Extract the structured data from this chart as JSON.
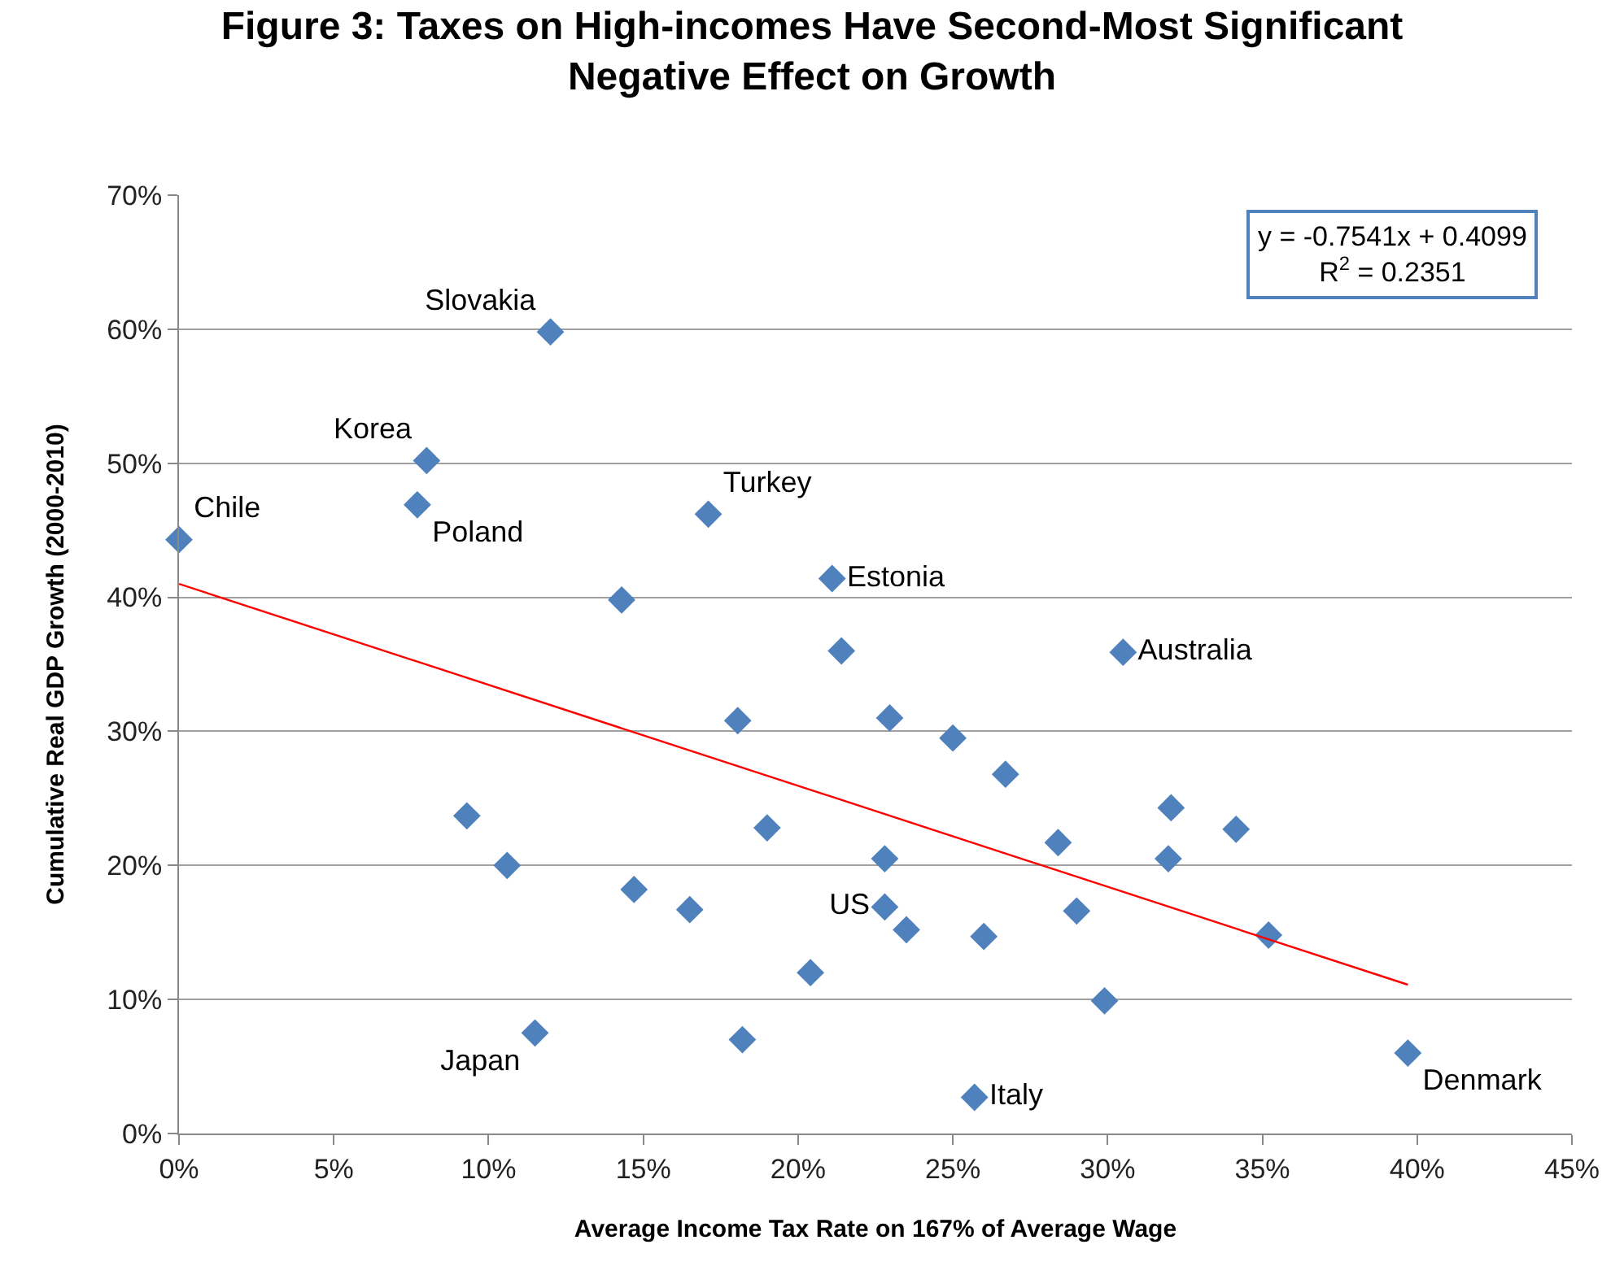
{
  "chart_data": {
    "type": "scatter",
    "title": "Figure 3: Taxes on High-incomes Have Second-Most Significant\nNegative Effect on Growth",
    "xlabel": "Average Income Tax Rate on 167% of Average Wage",
    "ylabel": "Cumulative Real GDP Growth (2000-2010)",
    "xlim": [
      0,
      45
    ],
    "xticks": [
      {
        "value": 0,
        "label": "0%"
      },
      {
        "value": 5,
        "label": "5%"
      },
      {
        "value": 10,
        "label": "10%"
      },
      {
        "value": 15,
        "label": "15%"
      },
      {
        "value": 20,
        "label": "20%"
      },
      {
        "value": 25,
        "label": "25%"
      },
      {
        "value": 30,
        "label": "30%"
      },
      {
        "value": 35,
        "label": "35%"
      },
      {
        "value": 40,
        "label": "40%"
      },
      {
        "value": 45,
        "label": "45%"
      }
    ],
    "ylim": [
      0,
      70
    ],
    "yticks": [
      {
        "value": 0,
        "label": "0%"
      },
      {
        "value": 10,
        "label": "10%"
      },
      {
        "value": 20,
        "label": "20%"
      },
      {
        "value": 30,
        "label": "30%"
      },
      {
        "value": 40,
        "label": "40%"
      },
      {
        "value": 50,
        "label": "50%"
      },
      {
        "value": 60,
        "label": "60%"
      },
      {
        "value": 70,
        "label": "70%"
      }
    ],
    "grid": "y",
    "marker": "diamond",
    "series": [
      {
        "type": "scatter",
        "color": "#4f81bd",
        "x": [
          0,
          12.0,
          8.0,
          7.7,
          17.1,
          21.1,
          30.5,
          22.8,
          11.5,
          25.7,
          39.7,
          14.3,
          21.4,
          18.05,
          22.96,
          9.3,
          19.0,
          10.6,
          22.8,
          14.7,
          16.5,
          20.4,
          18.2,
          25.0,
          26.7,
          32.05,
          34.15,
          28.4,
          31.96,
          23.5,
          26.0,
          29.0,
          35.2,
          29.9
        ],
        "values": [
          44.3,
          59.8,
          50.2,
          46.9,
          46.2,
          41.4,
          35.9,
          16.9,
          7.5,
          2.7,
          6.0,
          39.8,
          36.0,
          30.8,
          31.0,
          23.7,
          22.8,
          20.0,
          20.5,
          18.2,
          16.7,
          12.0,
          7.0,
          29.5,
          26.8,
          24.3,
          22.7,
          21.7,
          20.5,
          15.2,
          14.7,
          16.6,
          14.8,
          9.9
        ],
        "value_labels": [
          "Chile",
          "Slovakia",
          "Korea",
          "Poland",
          "Turkey",
          "Estonia",
          "Australia",
          "US",
          "Japan",
          "Italy",
          "Denmark",
          null,
          null,
          null,
          null,
          null,
          null,
          null,
          null,
          null,
          null,
          null,
          null,
          null,
          null,
          null,
          null,
          null,
          null,
          null,
          null,
          null,
          null,
          null
        ]
      },
      {
        "type": "line",
        "color": "#ff0000",
        "marker": "none",
        "x": [
          0,
          39.7
        ],
        "values": [
          41.0,
          11.1
        ]
      }
    ],
    "annotations": [
      "y = -0.7541x + 0.4099\nR$^{2}$ = 0.2351"
    ]
  }
}
